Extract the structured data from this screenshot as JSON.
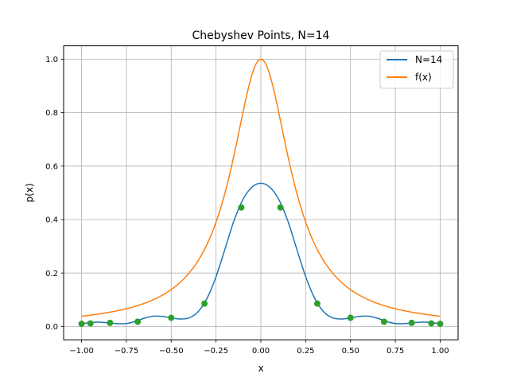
{
  "chart_data": {
    "type": "line",
    "title": "Chebyshev Points, N=14",
    "xlabel": "x",
    "ylabel": "p(x)",
    "xlim": [
      -1.1,
      1.1
    ],
    "ylim": [
      -0.05,
      1.05
    ],
    "xticks": [
      -1.0,
      -0.75,
      -0.5,
      -0.25,
      0.0,
      0.25,
      0.5,
      0.75,
      1.0
    ],
    "xtick_labels": [
      "−1.00",
      "−0.75",
      "−0.50",
      "−0.25",
      "0.00",
      "0.25",
      "0.50",
      "0.75",
      "1.00"
    ],
    "yticks": [
      0.0,
      0.2,
      0.4,
      0.6,
      0.8,
      1.0
    ],
    "ytick_labels": [
      "0.0",
      "0.2",
      "0.4",
      "0.6",
      "0.8",
      "1.0"
    ],
    "grid": true,
    "legend": "top-right",
    "series": [
      {
        "name": "N=14",
        "color": "#1f77b4",
        "x": [
          -1.0,
          -0.95,
          -0.9,
          -0.85,
          -0.8,
          -0.75,
          -0.7,
          -0.65,
          -0.6,
          -0.55,
          -0.5,
          -0.45,
          -0.4,
          -0.35,
          -0.3,
          -0.25,
          -0.2,
          -0.15,
          -0.1,
          -0.05,
          0.0,
          0.05,
          0.1,
          0.15,
          0.2,
          0.25,
          0.3,
          0.35,
          0.4,
          0.45,
          0.5,
          0.55,
          0.6,
          0.65,
          0.7,
          0.75,
          0.8,
          0.85,
          0.9,
          0.95,
          1.0
        ],
        "y": [
          0.0099,
          0.015,
          0.016,
          0.0138,
          0.0104,
          0.0109,
          0.019,
          0.0309,
          0.0384,
          0.0375,
          0.0317,
          0.0278,
          0.0322,
          0.0552,
          0.1054,
          0.1863,
          0.2901,
          0.3954,
          0.4751,
          0.5211,
          0.5357,
          0.5211,
          0.4751,
          0.3954,
          0.2901,
          0.1863,
          0.1054,
          0.0552,
          0.0322,
          0.0278,
          0.0317,
          0.0375,
          0.0384,
          0.0309,
          0.019,
          0.0109,
          0.0104,
          0.0138,
          0.016,
          0.015,
          0.0099
        ]
      },
      {
        "name": "f(x)",
        "color": "#ff7f0e",
        "function": "1/(1+25x^2)"
      }
    ],
    "points": {
      "color": "#2ca02c",
      "x": [
        -1.0,
        -0.9505,
        -0.8413,
        -0.6871,
        -0.5,
        -0.3146,
        -0.1092,
        0.1092,
        0.3146,
        0.5,
        0.6871,
        0.8413,
        0.9505,
        1.0
      ],
      "y": [
        0.0099,
        0.0114,
        0.0134,
        0.0176,
        0.0323,
        0.0855,
        0.4451,
        0.4451,
        0.0855,
        0.0323,
        0.0176,
        0.0134,
        0.0114,
        0.0099
      ]
    }
  }
}
